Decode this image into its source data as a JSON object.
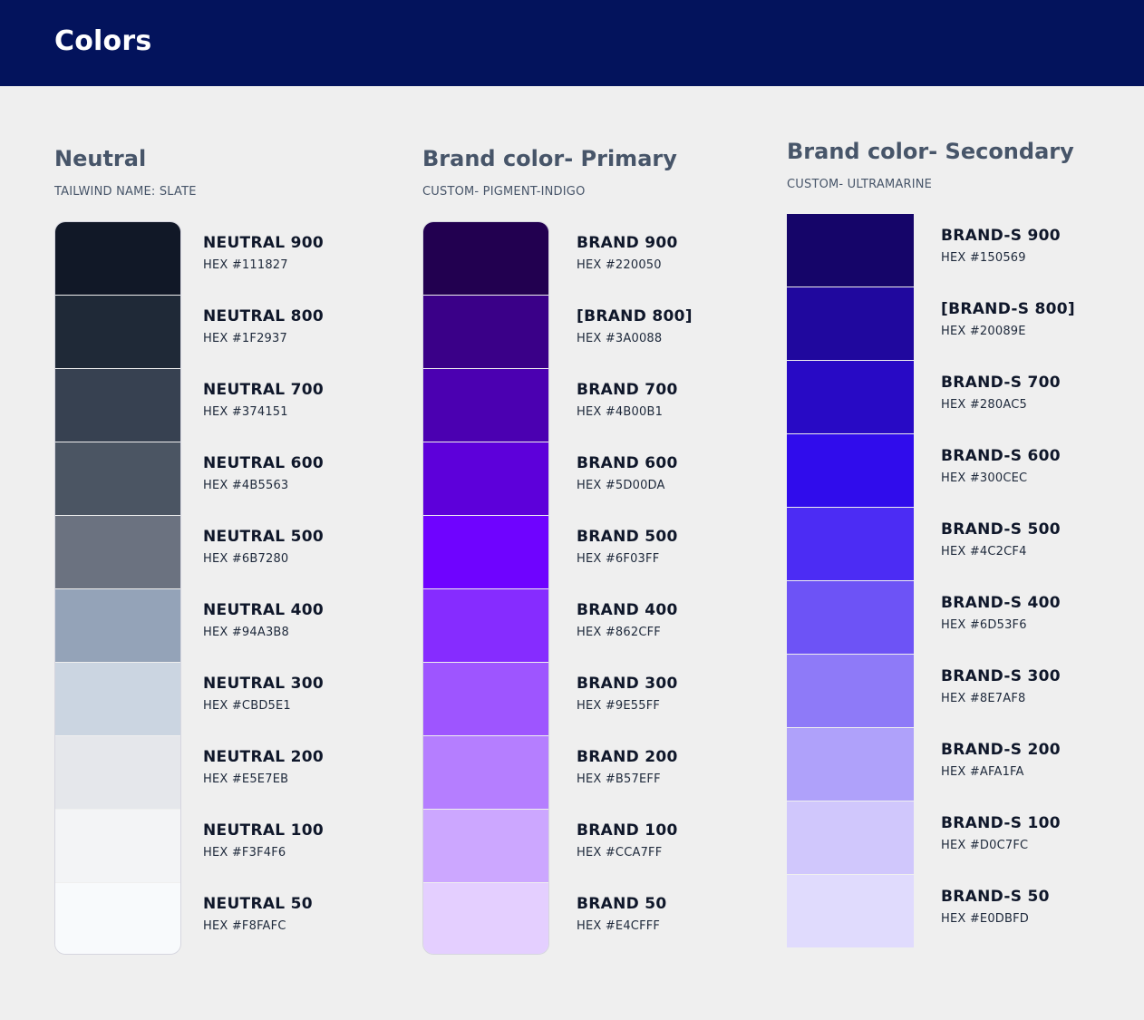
{
  "header": {
    "title": "Colors"
  },
  "columns": [
    {
      "title": "Neutral",
      "subtitle": "TAILWIND NAME: SLATE",
      "swatches": [
        {
          "name": "NEUTRAL 900",
          "hex": "HEX #111827",
          "color": "#111827"
        },
        {
          "name": "NEUTRAL 800",
          "hex": "HEX #1F2937",
          "color": "#1F2937"
        },
        {
          "name": "NEUTRAL 700",
          "hex": "HEX #374151",
          "color": "#374151"
        },
        {
          "name": "NEUTRAL 600",
          "hex": "HEX #4B5563",
          "color": "#4B5563"
        },
        {
          "name": "NEUTRAL 500",
          "hex": "HEX #6B7280",
          "color": "#6B7280"
        },
        {
          "name": "NEUTRAL 400",
          "hex": "HEX #94A3B8",
          "color": "#94A3B8"
        },
        {
          "name": "NEUTRAL 300",
          "hex": "HEX #CBD5E1",
          "color": "#CBD5E1"
        },
        {
          "name": "NEUTRAL 200",
          "hex": "HEX #E5E7EB",
          "color": "#E5E7EB"
        },
        {
          "name": "NEUTRAL 100",
          "hex": "HEX #F3F4F6",
          "color": "#F3F4F6"
        },
        {
          "name": "NEUTRAL 50",
          "hex": "HEX #F8FAFC",
          "color": "#F8FAFC"
        }
      ]
    },
    {
      "title": "Brand color- Primary",
      "subtitle": "CUSTOM- PIGMENT-INDIGO",
      "swatches": [
        {
          "name": "BRAND 900",
          "hex": "HEX #220050",
          "color": "#220050"
        },
        {
          "name": "[BRAND 800]",
          "hex": "HEX #3A0088",
          "color": "#3A0088"
        },
        {
          "name": "BRAND 700",
          "hex": "HEX #4B00B1",
          "color": "#4B00B1"
        },
        {
          "name": "BRAND 600",
          "hex": "HEX #5D00DA",
          "color": "#5D00DA"
        },
        {
          "name": "BRAND 500",
          "hex": "HEX #6F03FF",
          "color": "#6F03FF"
        },
        {
          "name": "BRAND 400",
          "hex": "HEX #862CFF",
          "color": "#862CFF"
        },
        {
          "name": "BRAND 300",
          "hex": "HEX #9E55FF",
          "color": "#9E55FF"
        },
        {
          "name": "BRAND 200",
          "hex": "HEX #B57EFF",
          "color": "#B57EFF"
        },
        {
          "name": "BRAND 100",
          "hex": "HEX #CCA7FF",
          "color": "#CCA7FF"
        },
        {
          "name": "BRAND 50",
          "hex": "HEX #E4CFFF",
          "color": "#E4CFFF"
        }
      ]
    },
    {
      "title": "Brand color- Secondary",
      "subtitle": "CUSTOM- ULTRAMARINE",
      "swatches": [
        {
          "name": "BRAND-S 900",
          "hex": "HEX #150569",
          "color": "#150569"
        },
        {
          "name": "[BRAND-S 800]",
          "hex": "HEX #20089E",
          "color": "#20089E"
        },
        {
          "name": "BRAND-S 700",
          "hex": "HEX #280AC5",
          "color": "#280AC5"
        },
        {
          "name": "BRAND-S 600",
          "hex": "HEX #300CEC",
          "color": "#300CEC"
        },
        {
          "name": "BRAND-S 500",
          "hex": "HEX #4C2CF4",
          "color": "#4C2CF4"
        },
        {
          "name": "BRAND-S 400",
          "hex": "HEX #6D53F6",
          "color": "#6D53F6"
        },
        {
          "name": "BRAND-S 300",
          "hex": "HEX #8E7AF8",
          "color": "#8E7AF8"
        },
        {
          "name": "BRAND-S 200",
          "hex": "HEX #AFA1FA",
          "color": "#AFA1FA"
        },
        {
          "name": "BRAND-S 100",
          "hex": "HEX #D0C7FC",
          "color": "#D0C7FC"
        },
        {
          "name": "BRAND-S 50",
          "hex": "HEX #E0DBFD",
          "color": "#E0DBFD"
        }
      ]
    }
  ]
}
